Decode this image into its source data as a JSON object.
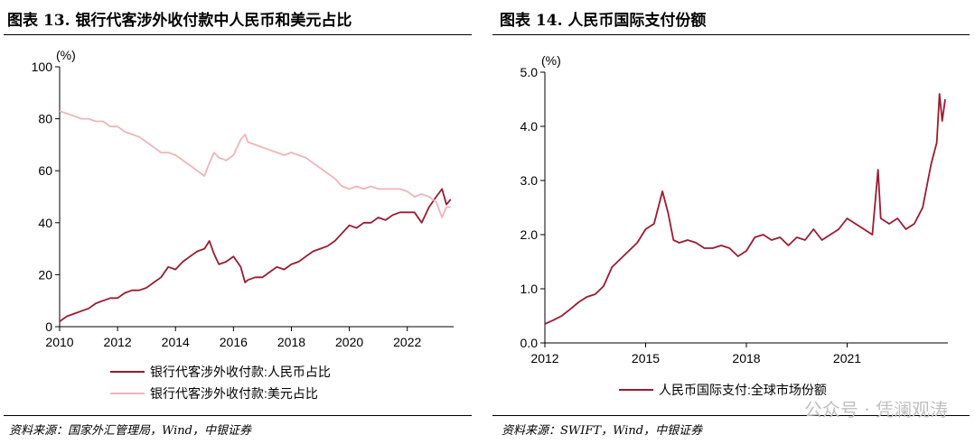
{
  "left": {
    "title": "图表 13. 银行代客涉外收付款中人民币和美元占比",
    "source": "资料来源：国家外汇管理局，Wind，中银证券",
    "chart_data": {
      "type": "line",
      "ylabel": "(%)",
      "ylim": [
        0,
        100
      ],
      "xlim": [
        2010,
        2023.6
      ],
      "yticks": [
        "0",
        "20",
        "40",
        "60",
        "80",
        "100"
      ],
      "xticks": [
        "2010",
        "2012",
        "2014",
        "2016",
        "2018",
        "2020",
        "2022"
      ],
      "series": [
        {
          "name": "银行代客涉外收付款:人民币占比",
          "color": "#9b1b30",
          "x": [
            2010.0,
            2010.25,
            2010.5,
            2010.75,
            2011.0,
            2011.25,
            2011.5,
            2011.75,
            2012.0,
            2012.25,
            2012.5,
            2012.75,
            2013.0,
            2013.25,
            2013.5,
            2013.75,
            2014.0,
            2014.25,
            2014.5,
            2014.75,
            2015.0,
            2015.17,
            2015.33,
            2015.5,
            2015.75,
            2016.0,
            2016.25,
            2016.4,
            2016.5,
            2016.75,
            2017.0,
            2017.25,
            2017.5,
            2017.75,
            2018.0,
            2018.25,
            2018.5,
            2018.75,
            2019.0,
            2019.25,
            2019.5,
            2019.75,
            2020.0,
            2020.25,
            2020.5,
            2020.75,
            2021.0,
            2021.25,
            2021.5,
            2021.75,
            2022.0,
            2022.25,
            2022.5,
            2022.75,
            2023.0,
            2023.2,
            2023.35,
            2023.5
          ],
          "values": [
            2,
            4,
            5,
            6,
            7,
            9,
            10,
            11,
            11,
            13,
            14,
            14,
            15,
            17,
            19,
            23,
            22,
            25,
            27,
            29,
            30,
            33,
            28,
            24,
            25,
            27,
            23,
            17,
            18,
            19,
            19,
            21,
            23,
            22,
            24,
            25,
            27,
            29,
            30,
            31,
            33,
            36,
            39,
            38,
            40,
            40,
            42,
            41,
            43,
            44,
            44,
            44,
            40,
            46,
            50,
            53,
            47,
            49
          ]
        },
        {
          "name": "银行代客涉外收付款:美元占比",
          "color": "#f0b4b6",
          "x": [
            2010.0,
            2010.25,
            2010.5,
            2010.75,
            2011.0,
            2011.25,
            2011.5,
            2011.75,
            2012.0,
            2012.25,
            2012.5,
            2012.75,
            2013.0,
            2013.25,
            2013.5,
            2013.75,
            2014.0,
            2014.25,
            2014.5,
            2014.75,
            2015.0,
            2015.17,
            2015.33,
            2015.5,
            2015.75,
            2016.0,
            2016.25,
            2016.4,
            2016.5,
            2016.75,
            2017.0,
            2017.25,
            2017.5,
            2017.75,
            2018.0,
            2018.25,
            2018.5,
            2018.75,
            2019.0,
            2019.25,
            2019.5,
            2019.75,
            2020.0,
            2020.25,
            2020.5,
            2020.75,
            2021.0,
            2021.25,
            2021.5,
            2021.75,
            2022.0,
            2022.25,
            2022.5,
            2022.75,
            2023.0,
            2023.2,
            2023.35,
            2023.5
          ],
          "values": [
            83,
            82,
            81,
            80,
            80,
            79,
            79,
            77,
            77,
            75,
            74,
            73,
            71,
            69,
            67,
            67,
            66,
            64,
            62,
            60,
            58,
            63,
            67,
            65,
            64,
            66,
            72,
            74,
            71,
            70,
            69,
            68,
            67,
            66,
            67,
            66,
            65,
            63,
            61,
            59,
            57,
            54,
            53,
            54,
            53,
            54,
            53,
            53,
            53,
            53,
            52,
            50,
            51,
            50,
            48,
            42,
            46,
            46
          ]
        }
      ]
    }
  },
  "right": {
    "title": "图表 14. 人民币国际支付份额",
    "source": "资料来源：SWIFT，Wind，中银证券",
    "chart_data": {
      "type": "line",
      "ylabel": "(%)",
      "ylim": [
        0,
        5
      ],
      "xlim": [
        2012,
        2024
      ],
      "yticks": [
        "0.0",
        "1.0",
        "2.0",
        "3.0",
        "4.0",
        "5.0"
      ],
      "xticks": [
        "2012",
        "2015",
        "2018",
        "2021"
      ],
      "series": [
        {
          "name": "人民币国际支付:全球市场份额",
          "color": "#9b1b30",
          "x": [
            2012.0,
            2012.25,
            2012.5,
            2012.75,
            2013.0,
            2013.25,
            2013.5,
            2013.75,
            2014.0,
            2014.25,
            2014.5,
            2014.75,
            2015.0,
            2015.25,
            2015.5,
            2015.67,
            2015.83,
            2016.0,
            2016.25,
            2016.5,
            2016.75,
            2017.0,
            2017.25,
            2017.5,
            2017.75,
            2018.0,
            2018.25,
            2018.5,
            2018.75,
            2019.0,
            2019.25,
            2019.5,
            2019.75,
            2020.0,
            2020.25,
            2020.5,
            2020.75,
            2021.0,
            2021.25,
            2021.5,
            2021.75,
            2021.92,
            2022.0,
            2022.25,
            2022.5,
            2022.75,
            2023.0,
            2023.25,
            2023.5,
            2023.67,
            2023.75,
            2023.83,
            2023.92
          ],
          "values": [
            0.35,
            0.42,
            0.5,
            0.62,
            0.75,
            0.85,
            0.9,
            1.05,
            1.4,
            1.55,
            1.7,
            1.85,
            2.1,
            2.2,
            2.8,
            2.4,
            1.9,
            1.85,
            1.9,
            1.85,
            1.75,
            1.75,
            1.8,
            1.75,
            1.6,
            1.7,
            1.95,
            2.0,
            1.9,
            1.95,
            1.8,
            1.95,
            1.9,
            2.1,
            1.9,
            2.0,
            2.1,
            2.3,
            2.2,
            2.1,
            2.0,
            3.2,
            2.3,
            2.2,
            2.3,
            2.1,
            2.2,
            2.5,
            3.3,
            3.7,
            4.6,
            4.1,
            4.5
          ]
        }
      ]
    }
  },
  "watermark": "公众号 · 凭澜观涛"
}
